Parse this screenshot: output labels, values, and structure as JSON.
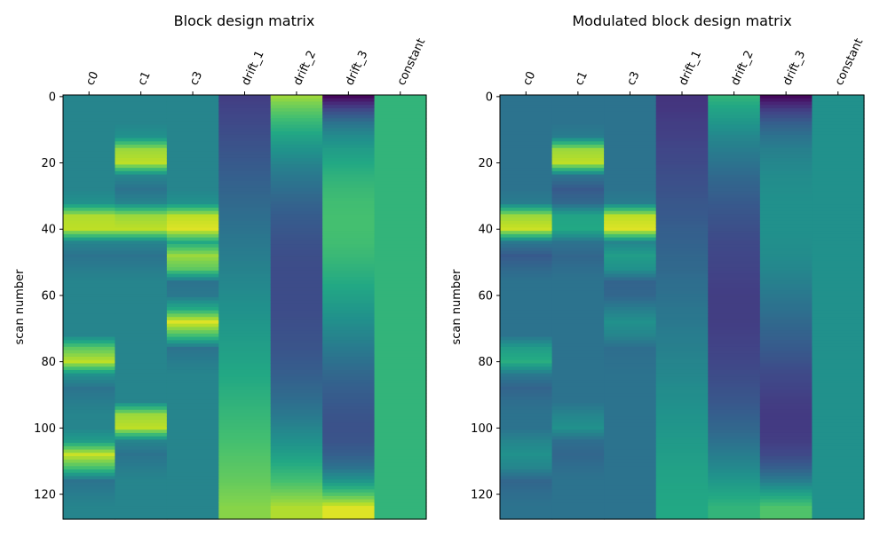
{
  "chart_data": [
    {
      "type": "heatmap",
      "title": "Block design matrix",
      "ylabel": "scan number",
      "xlabel": "",
      "columns": [
        "c0",
        "c1",
        "c3",
        "drift_1",
        "drift_2",
        "drift_3",
        "constant"
      ],
      "yticks": [
        0,
        20,
        40,
        60,
        80,
        100,
        120
      ],
      "ylim": [
        127.5,
        -0.5
      ],
      "n_scans": 128,
      "colormap": "viridis",
      "value_scale": "normalized colormap level 0-1",
      "sample_scans": [
        0,
        4,
        8,
        12,
        16,
        20,
        24,
        28,
        32,
        36,
        40,
        44,
        48,
        52,
        56,
        60,
        64,
        68,
        72,
        76,
        80,
        84,
        88,
        92,
        96,
        100,
        104,
        108,
        112,
        116,
        120,
        124
      ],
      "values": {
        "c0": [
          0.45,
          0.45,
          0.45,
          0.45,
          0.45,
          0.45,
          0.45,
          0.45,
          0.5,
          0.88,
          0.9,
          0.45,
          0.38,
          0.42,
          0.45,
          0.45,
          0.45,
          0.45,
          0.45,
          0.75,
          0.9,
          0.5,
          0.38,
          0.42,
          0.45,
          0.45,
          0.55,
          0.92,
          0.7,
          0.38,
          0.42,
          0.45
        ],
        "c1": [
          0.45,
          0.45,
          0.45,
          0.5,
          0.85,
          0.9,
          0.45,
          0.38,
          0.45,
          0.85,
          0.9,
          0.45,
          0.38,
          0.42,
          0.45,
          0.45,
          0.45,
          0.45,
          0.45,
          0.45,
          0.45,
          0.45,
          0.45,
          0.45,
          0.85,
          0.9,
          0.45,
          0.38,
          0.42,
          0.45,
          0.45,
          0.45
        ],
        "c3": [
          0.45,
          0.45,
          0.45,
          0.45,
          0.45,
          0.45,
          0.45,
          0.45,
          0.5,
          0.9,
          0.95,
          0.6,
          0.85,
          0.75,
          0.38,
          0.4,
          0.6,
          0.95,
          0.7,
          0.38,
          0.42,
          0.45,
          0.45,
          0.45,
          0.45,
          0.45,
          0.45,
          0.45,
          0.45,
          0.45,
          0.45,
          0.45
        ],
        "drift_1": [
          0.18,
          0.2,
          0.22,
          0.24,
          0.26,
          0.28,
          0.3,
          0.32,
          0.34,
          0.36,
          0.38,
          0.4,
          0.42,
          0.44,
          0.46,
          0.48,
          0.5,
          0.52,
          0.54,
          0.56,
          0.58,
          0.6,
          0.62,
          0.64,
          0.66,
          0.68,
          0.7,
          0.72,
          0.74,
          0.76,
          0.79,
          0.82
        ],
        "drift_2": [
          0.85,
          0.75,
          0.66,
          0.58,
          0.51,
          0.45,
          0.4,
          0.36,
          0.32,
          0.29,
          0.27,
          0.25,
          0.24,
          0.23,
          0.23,
          0.23,
          0.23,
          0.24,
          0.25,
          0.26,
          0.28,
          0.3,
          0.33,
          0.36,
          0.4,
          0.45,
          0.5,
          0.56,
          0.63,
          0.7,
          0.79,
          0.88
        ],
        "drift_3": [
          0.02,
          0.22,
          0.38,
          0.48,
          0.55,
          0.6,
          0.64,
          0.67,
          0.69,
          0.7,
          0.7,
          0.69,
          0.67,
          0.64,
          0.61,
          0.57,
          0.53,
          0.49,
          0.45,
          0.41,
          0.37,
          0.33,
          0.3,
          0.28,
          0.26,
          0.25,
          0.26,
          0.3,
          0.38,
          0.52,
          0.72,
          0.95
        ],
        "constant": [
          0.65,
          0.65,
          0.65,
          0.65,
          0.65,
          0.65,
          0.65,
          0.65,
          0.65,
          0.65,
          0.65,
          0.65,
          0.65,
          0.65,
          0.65,
          0.65,
          0.65,
          0.65,
          0.65,
          0.65,
          0.65,
          0.65,
          0.65,
          0.65,
          0.65,
          0.65,
          0.65,
          0.65,
          0.65,
          0.65,
          0.65,
          0.65
        ]
      }
    },
    {
      "type": "heatmap",
      "title": "Modulated block design matrix",
      "ylabel": "scan number",
      "xlabel": "",
      "columns": [
        "c0",
        "c1",
        "c3",
        "drift_1",
        "drift_2",
        "drift_3",
        "constant"
      ],
      "yticks": [
        0,
        20,
        40,
        60,
        80,
        100,
        120
      ],
      "ylim": [
        127.5,
        -0.5
      ],
      "n_scans": 128,
      "colormap": "viridis",
      "value_scale": "normalized colormap level 0-1",
      "sample_scans": [
        0,
        4,
        8,
        12,
        16,
        20,
        24,
        28,
        32,
        36,
        40,
        44,
        48,
        52,
        56,
        60,
        64,
        68,
        72,
        76,
        80,
        84,
        88,
        92,
        96,
        100,
        104,
        108,
        112,
        116,
        120,
        124
      ],
      "values": {
        "c0": [
          0.38,
          0.38,
          0.38,
          0.38,
          0.38,
          0.38,
          0.38,
          0.38,
          0.42,
          0.85,
          0.92,
          0.4,
          0.28,
          0.34,
          0.38,
          0.38,
          0.38,
          0.38,
          0.38,
          0.55,
          0.62,
          0.4,
          0.32,
          0.36,
          0.38,
          0.38,
          0.45,
          0.5,
          0.45,
          0.33,
          0.36,
          0.38
        ],
        "c1": [
          0.38,
          0.38,
          0.38,
          0.42,
          0.85,
          0.9,
          0.38,
          0.28,
          0.34,
          0.58,
          0.6,
          0.38,
          0.33,
          0.36,
          0.38,
          0.38,
          0.38,
          0.38,
          0.38,
          0.38,
          0.38,
          0.38,
          0.38,
          0.38,
          0.45,
          0.5,
          0.36,
          0.33,
          0.36,
          0.38,
          0.38,
          0.38
        ],
        "c3": [
          0.38,
          0.38,
          0.38,
          0.38,
          0.38,
          0.38,
          0.38,
          0.38,
          0.42,
          0.9,
          0.95,
          0.45,
          0.55,
          0.5,
          0.32,
          0.33,
          0.42,
          0.5,
          0.45,
          0.36,
          0.37,
          0.38,
          0.38,
          0.38,
          0.38,
          0.38,
          0.38,
          0.38,
          0.38,
          0.38,
          0.38,
          0.38
        ],
        "drift_1": [
          0.15,
          0.16,
          0.18,
          0.19,
          0.21,
          0.22,
          0.24,
          0.25,
          0.27,
          0.28,
          0.3,
          0.31,
          0.33,
          0.34,
          0.36,
          0.37,
          0.39,
          0.4,
          0.42,
          0.43,
          0.45,
          0.46,
          0.48,
          0.49,
          0.51,
          0.52,
          0.54,
          0.55,
          0.57,
          0.58,
          0.59,
          0.6
        ],
        "drift_2": [
          0.65,
          0.58,
          0.52,
          0.46,
          0.42,
          0.38,
          0.34,
          0.31,
          0.28,
          0.26,
          0.24,
          0.22,
          0.21,
          0.2,
          0.19,
          0.18,
          0.18,
          0.18,
          0.19,
          0.2,
          0.21,
          0.23,
          0.25,
          0.27,
          0.3,
          0.33,
          0.37,
          0.42,
          0.47,
          0.53,
          0.59,
          0.65
        ],
        "drift_3": [
          0.02,
          0.18,
          0.3,
          0.38,
          0.43,
          0.46,
          0.48,
          0.49,
          0.5,
          0.5,
          0.5,
          0.49,
          0.48,
          0.46,
          0.43,
          0.4,
          0.37,
          0.34,
          0.31,
          0.28,
          0.25,
          0.22,
          0.2,
          0.18,
          0.17,
          0.17,
          0.18,
          0.22,
          0.3,
          0.42,
          0.58,
          0.72
        ],
        "constant": [
          0.5,
          0.5,
          0.5,
          0.5,
          0.5,
          0.5,
          0.5,
          0.5,
          0.5,
          0.5,
          0.5,
          0.5,
          0.5,
          0.5,
          0.5,
          0.5,
          0.5,
          0.5,
          0.5,
          0.5,
          0.5,
          0.5,
          0.5,
          0.5,
          0.5,
          0.5,
          0.5,
          0.5,
          0.5,
          0.5,
          0.5,
          0.5
        ]
      }
    }
  ]
}
